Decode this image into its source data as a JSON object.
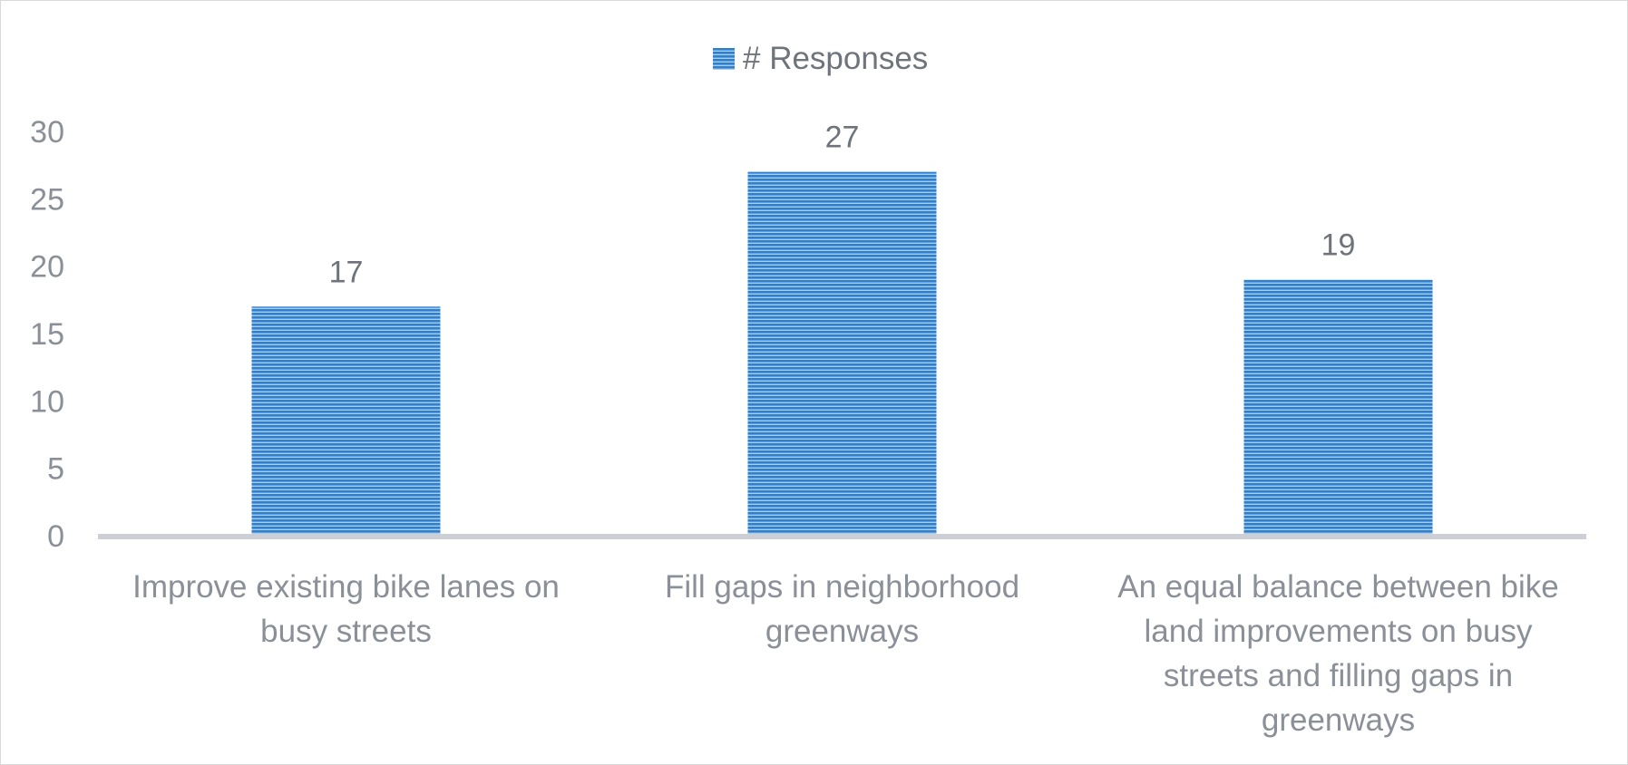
{
  "chart_data": {
    "type": "bar",
    "legend_position": "top-center",
    "grid": false,
    "ylim": [
      0,
      30
    ],
    "yticks": [
      "0",
      "5",
      "10",
      "15",
      "20",
      "25",
      "30"
    ],
    "categories": [
      [
        "Improve existing bike lanes on",
        "busy streets"
      ],
      [
        "Fill gaps in neighborhood",
        "greenways"
      ],
      [
        "An equal balance between bike",
        "land improvements on busy",
        "streets and filling gaps in",
        "greenways"
      ]
    ],
    "series": [
      {
        "name": "# Responses",
        "values": [
          17,
          27,
          19
        ],
        "data_labels": [
          "17",
          "27",
          "19"
        ],
        "color": "#2e7fd0",
        "fill_pattern": "horizontal-stripes"
      }
    ],
    "colors": {
      "bar": "#2e7fd0",
      "bar_stripe": "#a9cdee",
      "axis": "#ccd0d6",
      "text": "#8a8f98"
    }
  }
}
